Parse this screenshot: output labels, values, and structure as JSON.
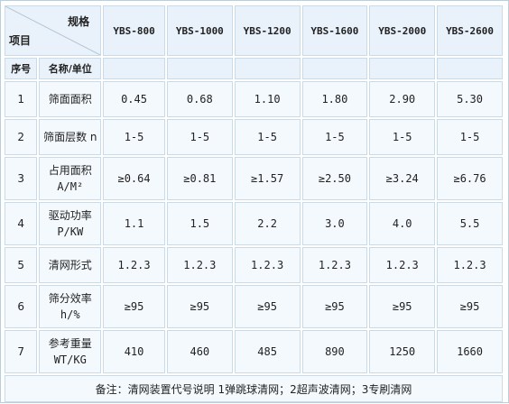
{
  "corner": {
    "top": "规格",
    "bottom": "项目"
  },
  "models": [
    "YBS-800",
    "YBS-1000",
    "YBS-1200",
    "YBS-1600",
    "YBS-2000",
    "YBS-2600"
  ],
  "header": {
    "index": "序号",
    "name_unit": "名称/单位"
  },
  "rows": [
    {
      "index": "1",
      "name": "筛面面积",
      "unit": "",
      "values": [
        "0.45",
        "0.68",
        "1.10",
        "1.80",
        "2.90",
        "5.30"
      ]
    },
    {
      "index": "2",
      "name": "筛面层数 n",
      "unit": "",
      "values": [
        "1-5",
        "1-5",
        "1-5",
        "1-5",
        "1-5",
        "1-5"
      ]
    },
    {
      "index": "3",
      "name": "占用面积",
      "unit": "A/M²",
      "values": [
        "≥0.64",
        "≥0.81",
        "≥1.57",
        "≥2.50",
        "≥3.24",
        "≥6.76"
      ]
    },
    {
      "index": "4",
      "name": "驱动功率",
      "unit": "P/KW",
      "values": [
        "1.1",
        "1.5",
        "2.2",
        "3.0",
        "4.0",
        "5.5"
      ]
    },
    {
      "index": "5",
      "name": "清网形式",
      "unit": "",
      "values": [
        "1.2.3",
        "1.2.3",
        "1.2.3",
        "1.2.3",
        "1.2.3",
        "1.2.3"
      ]
    },
    {
      "index": "6",
      "name": "筛分效率",
      "unit": "h/%",
      "values": [
        "≥95",
        "≥95",
        "≥95",
        "≥95",
        "≥95",
        "≥95"
      ]
    },
    {
      "index": "7",
      "name": "参考重量",
      "unit": "WT/KG",
      "values": [
        "410",
        "460",
        "485",
        "890",
        "1250",
        "1660"
      ]
    }
  ],
  "note": "备注：清网装置代号说明 1弹跳球清网；2超声波清网；3专刷清网"
}
